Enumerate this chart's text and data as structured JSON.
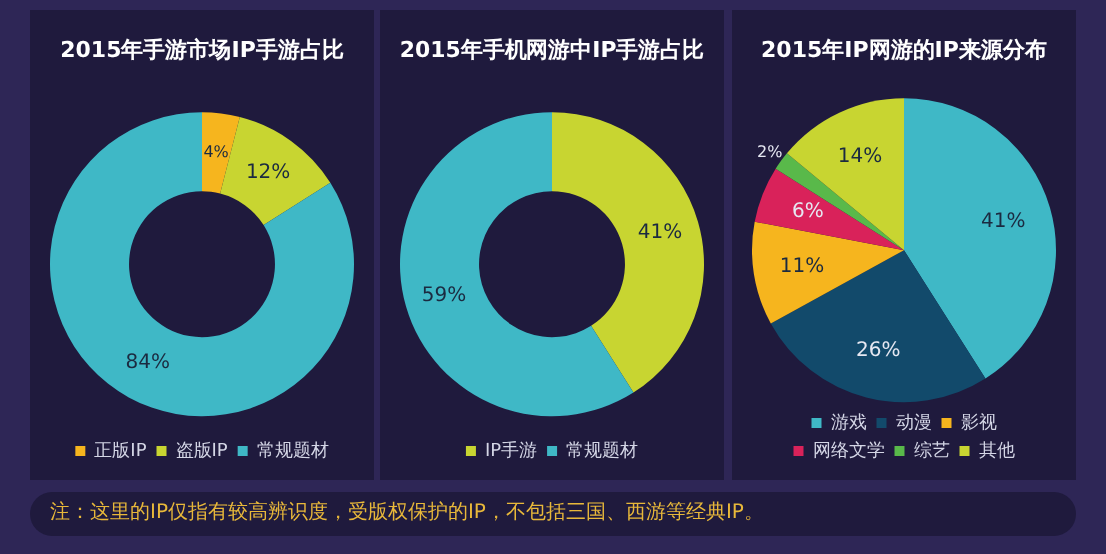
{
  "chart_data": [
    {
      "type": "donut",
      "title": "2015年手游市场IP手游占比",
      "categories": [
        "正版IP",
        "盗版IP",
        "常规题材"
      ],
      "values": [
        4,
        12,
        84
      ],
      "colors": [
        "#f6b51e",
        "#c8d531",
        "#3fb8c6"
      ],
      "value_labels": [
        "4%",
        "12%",
        "84%"
      ],
      "legend": "bottom",
      "annotations": [
        "注：这里的IP仅指有较高辨识度，受版权保护的IP，不包括三国、西游等经典IP。"
      ]
    },
    {
      "type": "donut",
      "title": "2015年手机网游中IP手游占比",
      "categories": [
        "IP手游",
        "常规题材"
      ],
      "values": [
        41,
        59
      ],
      "colors": [
        "#c8d531",
        "#3fb8c6"
      ],
      "value_labels": [
        "41%",
        "59%"
      ],
      "legend": "bottom"
    },
    {
      "type": "pie",
      "title": "2015年IP网游的IP来源分布",
      "categories": [
        "游戏",
        "动漫",
        "影视",
        "网络文学",
        "综艺",
        "其他"
      ],
      "values": [
        41,
        26,
        11,
        6,
        2,
        14
      ],
      "colors": [
        "#3fb8c6",
        "#124a6b",
        "#f6b51e",
        "#d9225a",
        "#59b94a",
        "#c8d531"
      ],
      "value_labels": [
        "41%",
        "26%",
        "11%",
        "6%",
        "2%",
        "14%"
      ],
      "legend": "bottom"
    }
  ]
}
